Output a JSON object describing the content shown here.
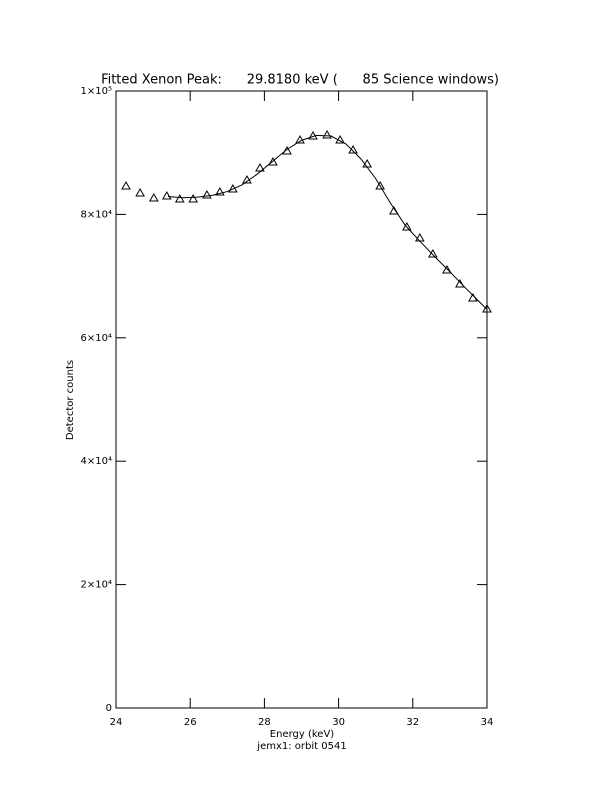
{
  "chart_data": {
    "type": "scatter",
    "title": "Fitted Xenon Peak:      29.8180 keV (      85 Science windows)",
    "x_label": "Energy (keV)",
    "subtitle": "jemx1: orbit 0541",
    "y_label": "Detector counts",
    "xlim": [
      24,
      34
    ],
    "xticks": [
      24,
      26,
      28,
      30,
      32,
      34
    ],
    "ylim": [
      0,
      100000
    ],
    "yticks": [
      0,
      {
        "value": 20000,
        "label": "2×10⁴"
      },
      {
        "value": 40000,
        "label": "4×10⁴"
      },
      {
        "value": 60000,
        "label": "6×10⁴"
      },
      {
        "value": 80000,
        "label": "8×10⁴"
      },
      {
        "value": 100000,
        "label": "1×10⁵"
      }
    ],
    "series": [
      {
        "marker": "triangle",
        "color": "#000000",
        "x": [
          24.27,
          24.65,
          25.02,
          25.37,
          25.72,
          26.08,
          26.45,
          26.8,
          27.15,
          27.53,
          27.88,
          28.23,
          28.61,
          28.96,
          29.31,
          29.69,
          30.04,
          30.39,
          30.77,
          31.12,
          31.49,
          31.84,
          32.19,
          32.54,
          32.92,
          33.27,
          33.62,
          34.0
        ],
        "values": [
          84600,
          83470,
          82660,
          82980,
          82500,
          82500,
          83140,
          83630,
          84120,
          85580,
          87520,
          88490,
          90280,
          92060,
          92710,
          92870,
          92060,
          90440,
          88170,
          84600,
          80550,
          77960,
          76180,
          73580,
          70990,
          68720,
          66450,
          64670
        ]
      },
      {
        "marker": "line",
        "color": "#000000",
        "x": [
          25.4,
          25.8,
          26.2,
          26.6,
          27.0,
          27.4,
          27.8,
          28.2,
          28.6,
          29.0,
          29.4,
          29.8,
          30.2,
          30.6,
          31.0,
          31.4,
          31.8,
          32.2,
          32.6,
          33.0,
          33.4,
          33.8,
          34.0
        ],
        "values": [
          82900,
          82700,
          82800,
          83100,
          83700,
          84800,
          86500,
          88500,
          90500,
          92000,
          92800,
          92700,
          91400,
          89000,
          85800,
          81800,
          78200,
          75600,
          73100,
          70700,
          68200,
          65800,
          64600
        ]
      }
    ]
  }
}
